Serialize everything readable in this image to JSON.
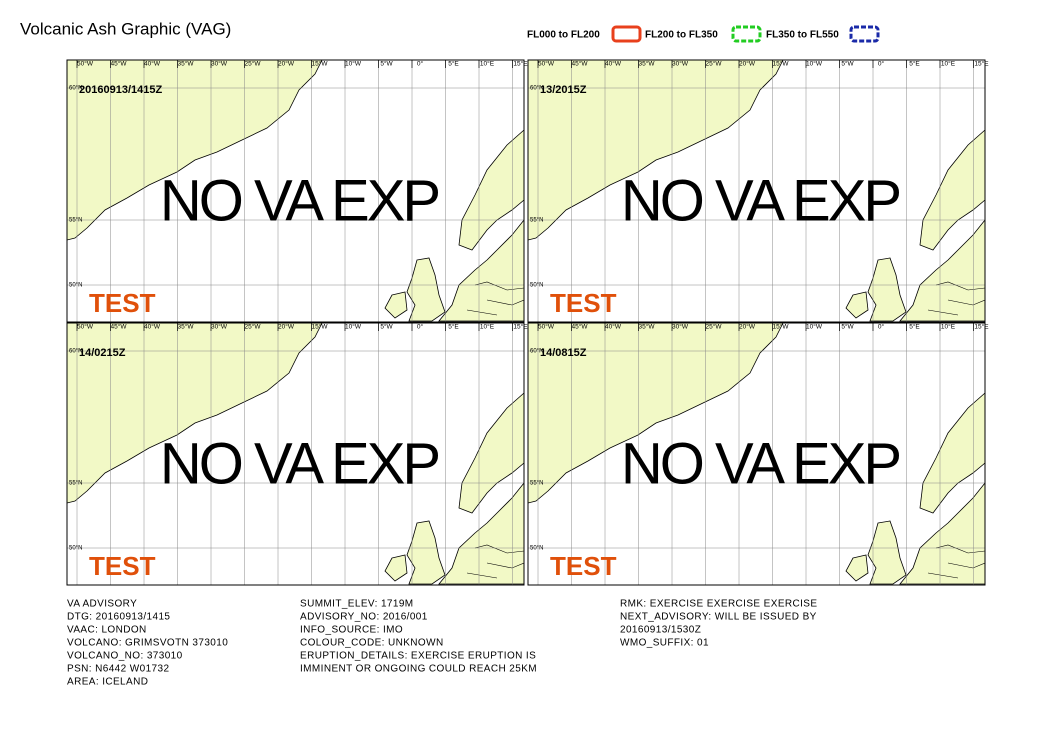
{
  "header": {
    "title": "Volcanic Ash Graphic (VAG)",
    "legend": [
      {
        "label": "FL000 to FL200",
        "color": "#e8401c",
        "dash": false
      },
      {
        "label": "FL200 to FL350",
        "color": "#22cc22",
        "dash": true
      },
      {
        "label": "FL350 to FL550",
        "color": "#1a2aa8",
        "dash": true
      }
    ]
  },
  "map": {
    "lon_labels": [
      "50°W",
      "45°W",
      "40°W",
      "35°W",
      "30°W",
      "25°W",
      "20°W",
      "15°W",
      "10°W",
      "5°W",
      "0°",
      "5°E",
      "10°E",
      "15°E"
    ],
    "lat_labels": [
      "60°N",
      "55°N",
      "50°N"
    ]
  },
  "panels": [
    {
      "time": "20160913/1415Z",
      "status": "NO VA EXP",
      "stamp": "TEST"
    },
    {
      "time": "13/2015Z",
      "status": "NO VA EXP",
      "stamp": "TEST"
    },
    {
      "time": "14/0215Z",
      "status": "NO VA EXP",
      "stamp": "TEST"
    },
    {
      "time": "14/0815Z",
      "status": "NO VA EXP",
      "stamp": "TEST"
    }
  ],
  "advisory": {
    "columns": [
      [
        "VA ADVISORY",
        "DTG: 20160913/1415",
        "VAAC: LONDON",
        "VOLCANO: GRIMSVOTN 373010",
        "VOLCANO_NO: 373010",
        "PSN: N6442 W01732",
        "AREA: ICELAND"
      ],
      [
        "SUMMIT_ELEV: 1719M",
        "ADVISORY_NO: 2016/001",
        "INFO_SOURCE: IMO",
        "COLOUR_CODE: UNKNOWN",
        "ERUPTION_DETAILS: EXERCISE ERUPTION IS",
        "IMMINENT OR ONGOING COULD REACH 25KM"
      ],
      [
        "RMK: EXERCISE EXERCISE EXERCISE",
        "NEXT_ADVISORY: WILL BE ISSUED BY",
        "20160913/1530Z",
        "WMO_SUFFIX: 01"
      ]
    ]
  }
}
